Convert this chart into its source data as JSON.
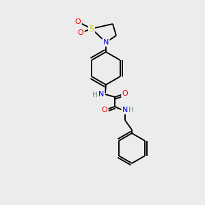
{
  "background_color": "#ececec",
  "bond_color": "#000000",
  "atom_colors": {
    "N": "#0000ee",
    "O": "#ee0000",
    "S": "#cccc00",
    "C": "#000000",
    "H": "#4a9090"
  },
  "figsize": [
    3.0,
    3.0
  ],
  "dpi": 100
}
